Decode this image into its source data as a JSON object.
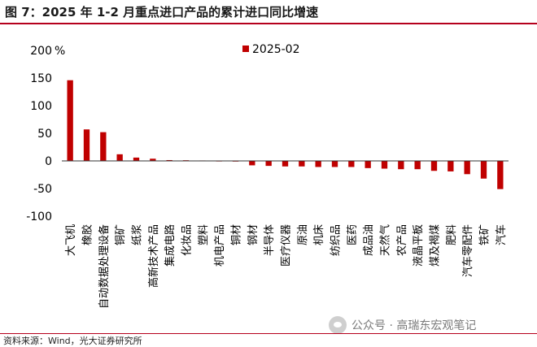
{
  "page": {
    "title": "图 7：2025 年 1-2 月重点进口产品的累计进口同比增速",
    "source": "资料来源：Wind，光大证券研究所",
    "watermark": "公众号 · 高瑞东宏观笔记",
    "watermark_icon": "wechat-icon"
  },
  "chart_data": {
    "type": "bar",
    "title": "",
    "xlabel": "",
    "ylabel": "%",
    "ylim": [
      -100,
      200
    ],
    "yticks": [
      -100,
      -50,
      0,
      50,
      100,
      150,
      200
    ],
    "grid": false,
    "legend_position": "top-center",
    "categories": [
      "大飞机",
      "橡胶",
      "自动数据处理设备",
      "铜矿",
      "纸浆",
      "高新技术产品",
      "集成电路",
      "化妆品",
      "塑料",
      "机电产品",
      "铜材",
      "钢材",
      "半导体",
      "医疗仪器",
      "原油",
      "机床",
      "纺织品",
      "医药",
      "成品油",
      "天然气",
      "农产品",
      "液晶平板",
      "煤及褐煤",
      "肥料",
      "汽车零配件",
      "铁矿",
      "汽车"
    ],
    "series": [
      {
        "name": "2025-02",
        "color": "#c00000",
        "values": [
          146,
          57,
          52,
          12,
          6,
          4,
          1.5,
          1.2,
          0.8,
          0.5,
          0.3,
          -8,
          -9,
          -10,
          -10,
          -11,
          -11,
          -11,
          -13,
          -14,
          -15,
          -15,
          -18,
          -19,
          -24,
          -32,
          -51
        ]
      }
    ]
  }
}
